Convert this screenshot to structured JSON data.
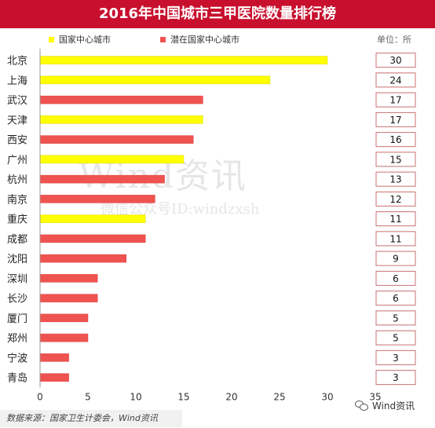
{
  "header": {
    "title": "2016年中国城市三甲医院数量排行榜"
  },
  "unit_label": "单位：所",
  "legend": [
    {
      "label": "国家中心城市",
      "color": "#ffff00"
    },
    {
      "label": "潜在国家中心城市",
      "color": "#ef5350"
    }
  ],
  "watermark": {
    "main": "Wind资讯",
    "sub": "微信公众号ID:windzxsh"
  },
  "footer": {
    "source": "数据来源：国家卫生计委会，Wind资讯",
    "brand": "Wind资讯"
  },
  "chart_data": {
    "type": "bar",
    "orientation": "horizontal",
    "title": "2016年中国城市三甲医院数量排行榜",
    "xlim": [
      0,
      35
    ],
    "xticks": [
      0,
      5,
      10,
      15,
      20,
      25,
      30,
      35
    ],
    "grid": false,
    "legend_position": "top",
    "categories": [
      "北京",
      "上海",
      "武汉",
      "天津",
      "西安",
      "广州",
      "杭州",
      "南京",
      "重庆",
      "成都",
      "沈阳",
      "深圳",
      "长沙",
      "厦门",
      "郑州",
      "宁波",
      "青岛"
    ],
    "values": [
      30,
      24,
      17,
      17,
      16,
      15,
      13,
      12,
      11,
      11,
      9,
      6,
      6,
      5,
      5,
      3,
      3
    ],
    "group": [
      "国家中心城市",
      "国家中心城市",
      "潜在国家中心城市",
      "国家中心城市",
      "潜在国家中心城市",
      "国家中心城市",
      "潜在国家中心城市",
      "潜在国家中心城市",
      "国家中心城市",
      "潜在国家中心城市",
      "潜在国家中心城市",
      "潜在国家中心城市",
      "潜在国家中心城市",
      "潜在国家中心城市",
      "潜在国家中心城市",
      "潜在国家中心城市",
      "潜在国家中心城市"
    ]
  }
}
